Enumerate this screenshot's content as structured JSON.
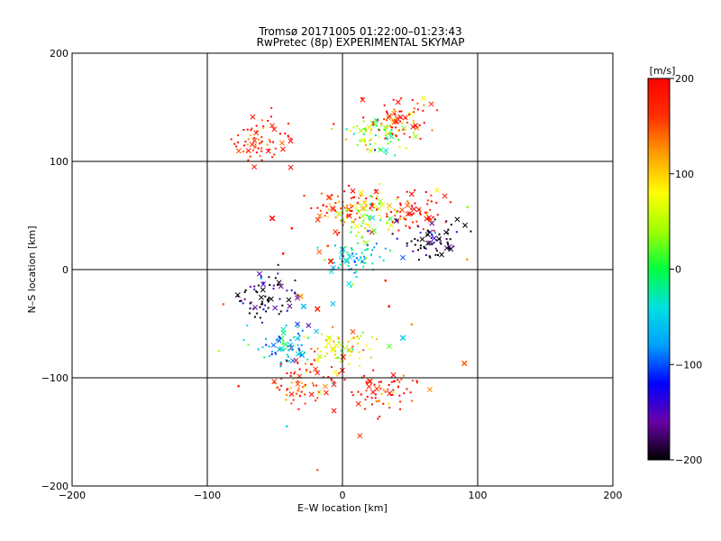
{
  "chart_data": {
    "type": "scatter",
    "title": "Tromsø 20171005 01:22:00–01:23:43",
    "subtitle": "RwPretec (8p) EXPERIMENTAL SKYMAP",
    "xlabel": "E–W location [km]",
    "ylabel": "N–S location [km]",
    "xlim": [
      -200,
      200
    ],
    "ylim": [
      -200,
      200
    ],
    "x_ticks": [
      "−200",
      "−100",
      "0",
      "100",
      "200"
    ],
    "y_ticks": [
      "−200",
      "−100",
      "0",
      "100",
      "200"
    ],
    "grid": true,
    "colorbar": {
      "label": "[m/s]",
      "range": [
        -200,
        200
      ],
      "ticks": [
        "200",
        "100",
        "0",
        "−100",
        "−200"
      ],
      "colormap": [
        "#000000",
        "#6a00a8",
        "#0000ff",
        "#00a0ff",
        "#00e0e0",
        "#00ff40",
        "#a0ff00",
        "#ffff00",
        "#ffa000",
        "#ff3000",
        "#ff0000"
      ]
    },
    "markers": [
      "cross",
      "dot"
    ],
    "clusters": [
      {
        "x": 25,
        "y": 125,
        "velocity": 40
      },
      {
        "x": 45,
        "y": 140,
        "velocity": 180
      },
      {
        "x": 0,
        "y": 60,
        "velocity": 170
      },
      {
        "x": 20,
        "y": 50,
        "velocity": 60
      },
      {
        "x": 55,
        "y": 55,
        "velocity": 190
      },
      {
        "x": 10,
        "y": 12,
        "velocity": -40
      },
      {
        "x": -55,
        "y": -25,
        "velocity": -180
      },
      {
        "x": 70,
        "y": 28,
        "velocity": -190
      },
      {
        "x": 0,
        "y": -70,
        "velocity": 80
      },
      {
        "x": -28,
        "y": -105,
        "velocity": 175
      },
      {
        "x": -40,
        "y": -70,
        "velocity": -50
      },
      {
        "x": 30,
        "y": -110,
        "velocity": 185
      },
      {
        "x": -60,
        "y": 120,
        "velocity": 185
      }
    ]
  }
}
